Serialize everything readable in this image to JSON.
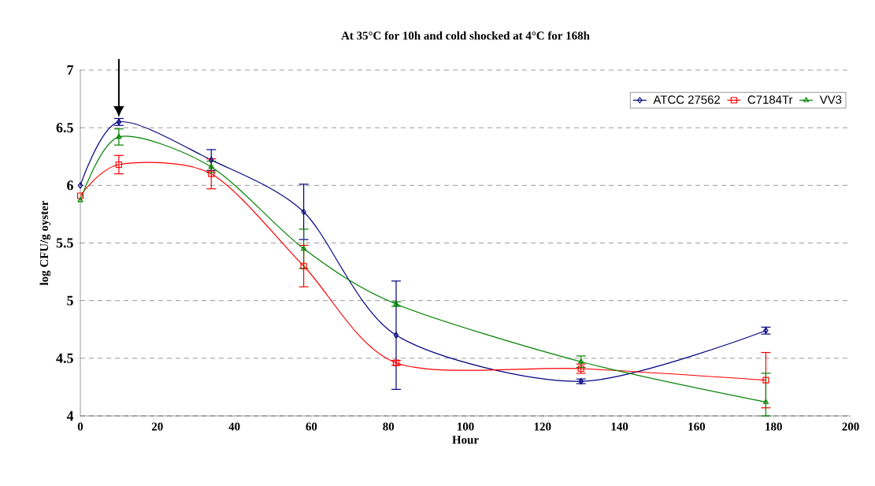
{
  "chart_data": {
    "type": "line",
    "title": "At 35°C for 10h and cold shocked at 4°C for 168h",
    "xlabel": "Hour",
    "ylabel": "log CFU/g oyster",
    "x": [
      0,
      10,
      34,
      58,
      82,
      130,
      178
    ],
    "series": [
      {
        "name": "ATCC 27562",
        "color": "#000080",
        "marker": "diamond",
        "values": [
          6.0,
          6.55,
          6.22,
          5.77,
          4.7,
          4.3,
          4.74
        ],
        "errors": [
          null,
          0.03,
          0.09,
          0.24,
          0.47,
          0.02,
          0.03
        ]
      },
      {
        "name": "C7184Tr",
        "color": "#ff0000",
        "marker": "square",
        "values": [
          5.91,
          6.18,
          6.1,
          5.3,
          4.46,
          4.41,
          4.31
        ],
        "errors": [
          null,
          0.08,
          0.13,
          0.18,
          0.02,
          0.04,
          0.24
        ]
      },
      {
        "name": "VV3",
        "color": "#008000",
        "marker": "triangle",
        "values": [
          5.87,
          6.42,
          6.16,
          5.45,
          4.97,
          4.47,
          4.12
        ],
        "errors": [
          null,
          0.07,
          0.05,
          0.17,
          0.02,
          0.05,
          [
            4.0,
            4.37
          ]
        ]
      }
    ],
    "xlim": [
      0,
      200
    ],
    "xticks": [
      0,
      20,
      40,
      60,
      80,
      100,
      120,
      140,
      160,
      180,
      200
    ],
    "ylim": [
      4,
      7
    ],
    "yticks": [
      4,
      4.5,
      5,
      5.5,
      6,
      6.5,
      7
    ],
    "grid": "y",
    "legend": "top right",
    "line_style": "solid"
  }
}
